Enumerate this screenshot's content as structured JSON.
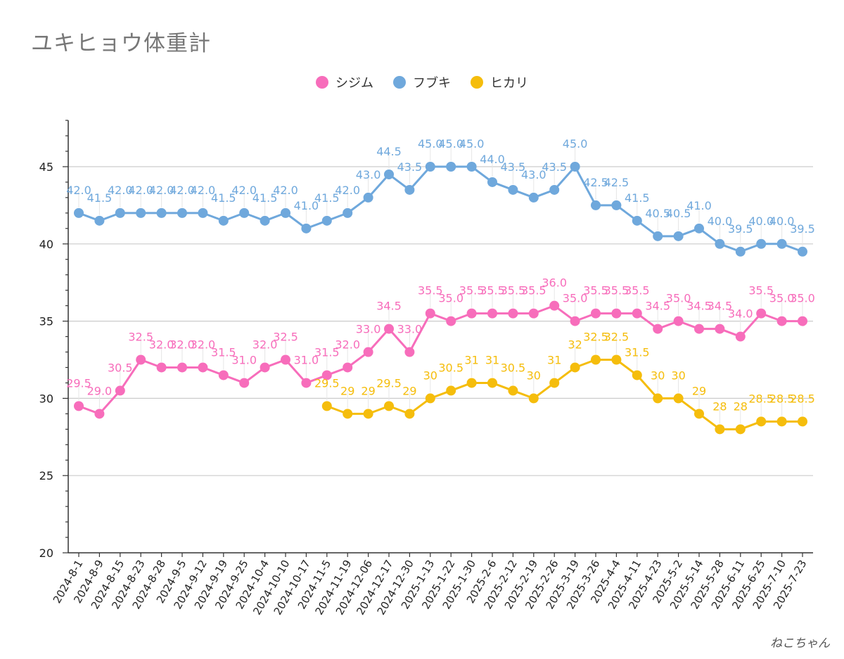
{
  "chart_data": {
    "type": "line",
    "title": "ユキヒョウ体重計",
    "xlabel": "",
    "ylabel": "",
    "ylim": [
      20,
      48
    ],
    "yticks": [
      20,
      25,
      30,
      35,
      40,
      45
    ],
    "grid": true,
    "legend_position": "top-center",
    "categories": [
      "2024-8-1",
      "2024-8-9",
      "2024-8-15",
      "2024-8-23",
      "2024-8-28",
      "2024-9-5",
      "2024-9-12",
      "2024-9-19",
      "2024-9-25",
      "2024-10-4",
      "2024-10-10",
      "2024-10-17",
      "2024-11-5",
      "2024-11-19",
      "2024-12-06",
      "2024-12-17",
      "2024-12-30",
      "2025-1-13",
      "2025-1-22",
      "2025-1-30",
      "2025-2-6",
      "2025-2-12",
      "2025-2-19",
      "2025-2-26",
      "2025-3-19",
      "2025-3-26",
      "2025-4-4",
      "2025-4-11",
      "2025-4-23",
      "2025-5-2",
      "2025-5-14",
      "2025-5-28",
      "2025-6-11",
      "2025-6-25",
      "2025-7-10",
      "2025-7-23"
    ],
    "series": [
      {
        "name": "シジム",
        "color": "#f76dbb",
        "values": [
          29.5,
          29.0,
          30.5,
          32.5,
          32.0,
          32.0,
          32.0,
          31.5,
          31.0,
          32.0,
          32.5,
          31.0,
          31.5,
          32.0,
          33.0,
          34.5,
          33.0,
          35.5,
          35.0,
          35.5,
          35.5,
          35.5,
          35.5,
          36.0,
          35.0,
          35.5,
          35.5,
          35.5,
          34.5,
          35.0,
          34.5,
          34.5,
          34.0,
          35.5,
          35.0,
          35.0
        ],
        "labels": [
          "29.5",
          "29.0",
          "30.5",
          "32.5",
          "32.0",
          "32.0",
          "32.0",
          "31.5",
          "31.0",
          "32.0",
          "32.5",
          "31.0",
          "31.5",
          "32.0",
          "33.0",
          "34.5",
          "33.0",
          "35.5",
          "35.0",
          "35.5",
          "35.5",
          "35.5",
          "35.5",
          "36.0",
          "35.0",
          "35.5",
          "35.5",
          "35.5",
          "34.5",
          "35.0",
          "34.5",
          "34.5",
          "34.0",
          "35.5",
          "35.0",
          "35.0"
        ]
      },
      {
        "name": "フブキ",
        "color": "#6fa8dc",
        "values": [
          42.0,
          41.5,
          42.0,
          42.0,
          42.0,
          42.0,
          42.0,
          41.5,
          42.0,
          41.5,
          42.0,
          41.0,
          41.5,
          42.0,
          43.0,
          44.5,
          43.5,
          45.0,
          45.0,
          45.0,
          44.0,
          43.5,
          43.0,
          43.5,
          45.0,
          42.5,
          42.5,
          41.5,
          40.5,
          40.5,
          41.0,
          40.0,
          39.5,
          40.0,
          40.0,
          39.5
        ],
        "labels": [
          "42.0",
          "41.5",
          "42.0",
          "42.0",
          "42.0",
          "42.0",
          "42.0",
          "41.5",
          "42.0",
          "41.5",
          "42.0",
          "41.0",
          "41.5",
          "42.0",
          "43.0",
          "44.5",
          "43.5",
          "45.0",
          "45.0",
          "45.0",
          "44.0",
          "43.5",
          "43.0",
          "43.5",
          "45.0",
          "42.5",
          "42.5",
          "41.5",
          "40.5",
          "40.5",
          "41.0",
          "40.0",
          "39.5",
          "40.0",
          "40.0",
          "39.5"
        ]
      },
      {
        "name": "ヒカリ",
        "color": "#f5bd0c",
        "values": [
          null,
          null,
          null,
          null,
          null,
          null,
          null,
          null,
          null,
          null,
          null,
          null,
          29.5,
          29.0,
          29.0,
          29.5,
          29.0,
          30.0,
          30.5,
          31.0,
          31.0,
          30.5,
          30.0,
          31.0,
          32.0,
          32.5,
          32.5,
          31.5,
          30.0,
          30.0,
          29.0,
          28.0,
          28.0,
          28.5,
          28.5,
          28.5
        ],
        "labels": [
          null,
          null,
          null,
          null,
          null,
          null,
          null,
          null,
          null,
          null,
          null,
          null,
          "29.5",
          "29",
          "29",
          "29.5",
          "29",
          "30",
          "30.5",
          "31",
          "31",
          "30.5",
          "30",
          "31",
          "32",
          "32.5",
          "32.5",
          "31.5",
          "30",
          "30",
          "29",
          "28",
          "28",
          "28.5",
          "28.5",
          "28.5"
        ]
      }
    ]
  },
  "signature": "ねこちゃん"
}
